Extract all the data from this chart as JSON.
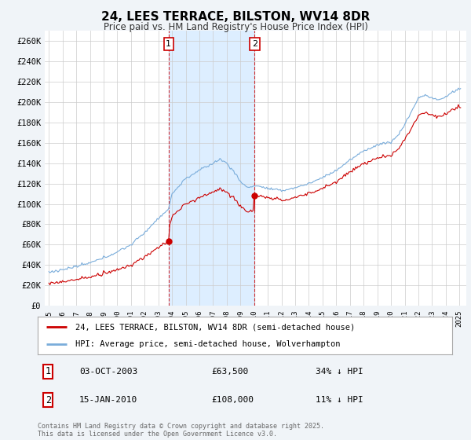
{
  "title": "24, LEES TERRACE, BILSTON, WV14 8DR",
  "subtitle": "Price paid vs. HM Land Registry's House Price Index (HPI)",
  "legend_line1": "24, LEES TERRACE, BILSTON, WV14 8DR (semi-detached house)",
  "legend_line2": "HPI: Average price, semi-detached house, Wolverhampton",
  "sale1_date": "03-OCT-2003",
  "sale1_price": 63500,
  "sale1_label": "34% ↓ HPI",
  "sale1_year": 2003.75,
  "sale2_date": "15-JAN-2010",
  "sale2_price": 108000,
  "sale2_label": "11% ↓ HPI",
  "sale2_year": 2010.04,
  "red_color": "#cc0000",
  "blue_color": "#7aaddb",
  "shade_color": "#ddeeff",
  "background_color": "#f0f4f8",
  "plot_bg_color": "#ffffff",
  "grid_color": "#cccccc",
  "footer": "Contains HM Land Registry data © Crown copyright and database right 2025.\nThis data is licensed under the Open Government Licence v3.0.",
  "ylim": [
    0,
    270000
  ],
  "yticks": [
    0,
    20000,
    40000,
    60000,
    80000,
    100000,
    120000,
    140000,
    160000,
    180000,
    200000,
    220000,
    240000,
    260000
  ],
  "ytick_labels": [
    "£0",
    "£20K",
    "£40K",
    "£60K",
    "£80K",
    "£100K",
    "£120K",
    "£140K",
    "£160K",
    "£180K",
    "£200K",
    "£220K",
    "£240K",
    "£260K"
  ]
}
